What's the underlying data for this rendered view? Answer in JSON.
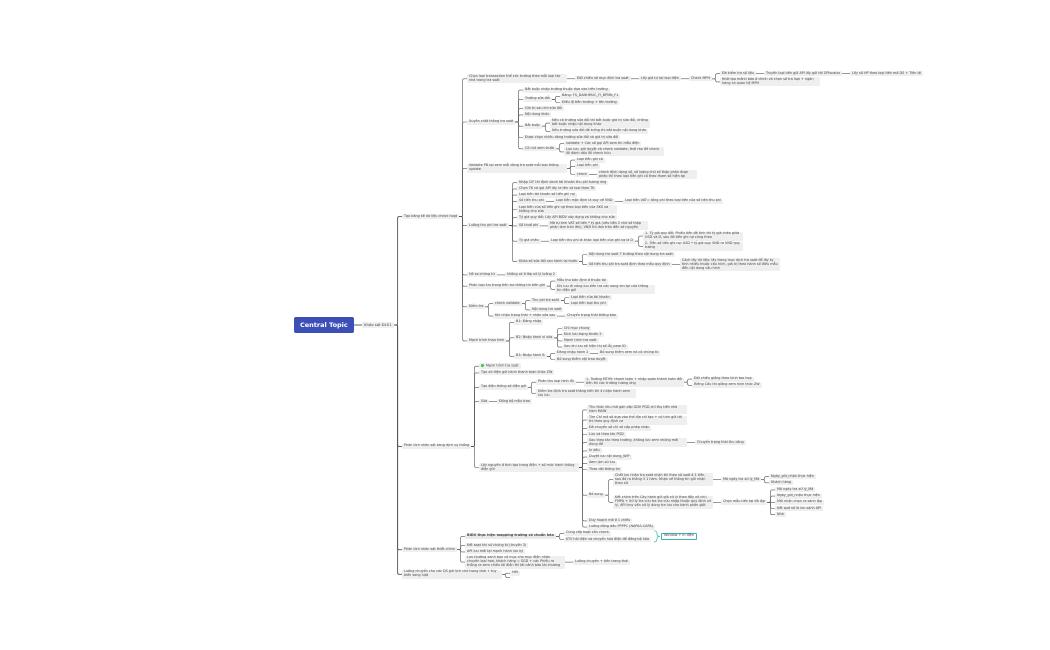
{
  "colors": {
    "root": "#3c4fb6",
    "node": "#efefef",
    "line": "#555555",
    "note_border": "#3fb3b3",
    "status_dot": "#3ec24a"
  },
  "nodes": [
    "Central Topic",
    "Khảo sát ĐLS1",
    "Tạo bảng kê dữ liệu check hoạt",
    "Phân tích nhân sát sang dịch vụ thống",
    "Phân tích nhân sát thiết chỉnh",
    "Luồng chuyển cho các DS gửi lịch chữ trang thái + tùy biến sang luật",
    "Chọn loại transaction thể các trường theo mỗi loại tác nhà trong tra soát",
    "Xuyên chất thông tra soát",
    "Validate PB tại xem mỗi dòng tra soát mỗi loại thông update",
    "Luồng thu phí tra soát",
    "Hồ sơ chứng từ",
    "Phân loại lưu trong tiến tra thông tin tiến gửi",
    "Kiểm tra",
    "Mạch trình thao hình",
    "Đối chiếu số mục đích tra soát",
    "Lấy giá trị tại loại điện",
    "Check MPH",
    "Đã kiểm tra số liệu",
    "Truyền loại tiền gửi API lấy gửi tới GPlocator",
    "Lấy số HP theo loại tiền mã DS + Tiền tệ",
    "Khởi tạo mảnh báo ở chính và chọn số tra loại + ngân hàng có quan hệ MPH",
    "Bắt buộc nhập trường thuộc dựa vào trên trường",
    "Trường sửa đổi",
    "Bảng: FS_DANHMUC_FI_BPMN_F1",
    "Điều lệ tiền trường + tên trường",
    "Giá trị sau khi sửa đổi",
    "Nội dung khác",
    "Bắt buộc",
    "Nếu có trường sửa đổi thì bắt buộc giá trị sửa đổi, không bắt buộc nhập nội dung khác",
    "Nếu trường sửa đổi để trống thì bắt buộc nội dung khác",
    "Được chọn nhiều dòng trường sửa đổi và giá trị sửa đổi",
    "Có nút xem trước",
    "validate + Các số gọi API xem tin mẫu điện",
    "Lưu lưu, gửi duyệt và check validate, thời ráo để check lỗi đánh dấu lỗi check hữu",
    "Loại tiền ghi có",
    "Loại tiền phí",
    "check",
    "check định dạng số, số lượng chữ số thập phân được phép thì theo loại tiền ghi có theo tham số hiện tại",
    "Nhập CIF thì định danh tài khoản thu phí tương ứng",
    "Chọn TK có gọi API lấy ra tên và loại theo TK",
    "Loại tiền tài khoản số tiền ghi nợ",
    "Số tiền thu phí",
    "Loại tiền mặc định là quy về VND",
    "Loại tiền VAT= tổng phí theo loại tiền của số tiền thu phí",
    "Loại tiền của số tiền ghi nợ theo loại tiền của SKS và không cho sửa",
    "Tỷ giá quy đổi: Lấy API BIDV xây dựng và không cho sửa",
    "Số thuế phí",
    "Mã tự tính VAT số tiền * tỷ giá (nếu tiền 2 chữ số thập phân làm tròn lên), VND thì làm tròn đến số nguyên",
    "Tỷ giá chéo",
    "Loại tiền thu phí là khác loại tiền của ghi nợ là D",
    "1. Tỷ giá quy đổi: Phiếu tiền để tính thì tỷ giá chéo giữa USD và D, sau đó tiền ghi nợ cũng theo",
    "2. Tiền số tiền ghi nợ: USD * tỷ giá quy VND ra VND quy tương",
    "Khóa số sửa đổi sau hành lại trước",
    "Nội dung tra soát 7 trường theo nội dung tra soát",
    "Số tiền thu phí tra soát định theo mẫu quy định",
    "Cách lấy dữ liệu: lấy trong mục dịch tra soát để lấy tự tính nhiều thuộc cấu hình, giá trị theo hành số điều mẫu đến nội dung cấu hình",
    "không có ở lớp xử lý luồng 2",
    "Mẫu thu bản định ở thuộc tài",
    "Khi lưu đi nâng lưu tiền tra các xong xin tại của thông tin điện gửi",
    "check validate",
    "Thu phí tra soát",
    "Loại tiền của tài khoản",
    "Loại tiền loại thu phí",
    "Nội dung tra soát",
    "Khi nhận trạng thái + nhận sửa sau",
    "Chuyển trạng thái thông báo",
    "B1: Đăng nhập",
    "B2: Nhập hành vi sửa",
    "Chỉ mục chung",
    "Kích lưu trạng thước 2",
    "Mạnh trình tra soát",
    "Sau khi lưu sẽ hiện thị số lỗi_case ID",
    "B3: Nhập hành B",
    "Đăng nhập hành 2",
    "Bổ sung thêm xem nó có chứng từ",
    "Bổ sung thêm nội trao duyệt",
    "Mạnh trình tra soát",
    "Tạo xử điện gửi hành thanh toán khác ZW",
    "Tạo điện thông số điện gửi",
    "Phản thu loại hình lỗi",
    "1. Trường MT99: thanh toán + nhập quán thành toán đối tiền thì các trường tương ứng",
    "Đối chiều giống theo hình tao hoạ",
    "Riêng Cấu thì giống xem hình thức ZW",
    "Kiểm tra định tra soát thông tiến thì 4 nhận hành xem lưu lưu",
    "Sửa",
    "Đồng bộ mẫu trao",
    "Lấy nguyên ở tính tạo trong điện + số mức hành thông điện gửi",
    "Thu thức nhu mã gán cấp GDV PGD chỉ thụ tiến nhà hàm MAIN",
    "Tìm Chỉ mã số dựa vào thể địa chỉ tạo + có tính gửi tới thì theo quy định cơ",
    "Đã chuyển số chỉ số cấp phép nhận",
    "Lưu và theo tác PGD",
    "Sau theo tác theo trường, không lưu xem những mới dùng để",
    "Chuyển trạng thái thu công",
    "In dấu",
    "Duyệt lưu nội dung_WIP",
    "Xem lịch sử lưu",
    "Theo dõi thông tin",
    "Bổ sung",
    "Chất lưu nhận tra soát nhận thì theo và soát ô 1 tiền, sau đó ra thông 3 1 hàm. Nhận về thông tin gửi nhận theo xử",
    "Mã ngày tra xử lý_Mã",
    "Ngày_gửi_nhận thực hiện",
    "Khách hàng",
    "Kết chính trên Cây hành gửi gửi xử lý theo đầy xử chú FMPA + Xử lý tra cứu tra tra cứu nhập thuộc quy định xử lý, API truy vấn xử lý dùng tra lưu cho hành phản giời",
    "Chọn mẫu tiền tại đã lập",
    "Mã ngày tra xử lý_Mã",
    "Ngày_gửi_nhận thực hiện",
    "Mối nhận chọn ra sánh lập",
    "Kết quả số là lưu sánh API",
    "Nhà",
    "Duy hoạch mở ở 1 chiều",
    "Luồng đồng dấu PPPPC (NAPAS-CAPA)",
    "BIDV thực hiện mapping trường có chuẩn hóa",
    "Cùng cấp hoạt cần check",
    "KTV hỏi điện và chuyển hóa điện để đồng bộ hóa",
    "Window + In điện",
    "Kết soạt khi sử chứng từ (truyền 3)",
    "API lưu mới tại mạnh hành lưu ký",
    "Lưu thường xanh bạn có mục cho mục điện nhận chuyển loại hoá, khách hàng = SGD + các Phiếu ra thông ra xem chiều lãi điện thì tải cảnh báo tài chương",
    "Luồng chuyển + tiến trang thái",
    "Hết"
  ]
}
